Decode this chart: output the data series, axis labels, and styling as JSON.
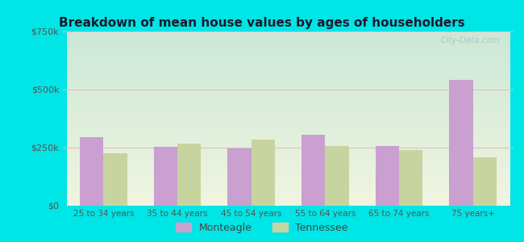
{
  "title": "Breakdown of mean house values by ages of householders",
  "categories": [
    "25 to 34 years",
    "35 to 44 years",
    "45 to 54 years",
    "55 to 64 years",
    "65 to 74 years",
    "75 years+"
  ],
  "monteagle": [
    295000,
    255000,
    248000,
    305000,
    258000,
    540000
  ],
  "tennessee": [
    225000,
    268000,
    285000,
    258000,
    240000,
    210000
  ],
  "monteagle_color": "#c9a0d0",
  "tennessee_color": "#c8d4a0",
  "ylim": [
    0,
    750000
  ],
  "yticks": [
    0,
    250000,
    500000,
    750000
  ],
  "ytick_labels": [
    "$0",
    "$250k",
    "$500k",
    "$750k"
  ],
  "background_top": "#cce8d8",
  "background_bottom": "#f0f5e0",
  "outer_color": "#00e5e5",
  "watermark": "City-Data.com",
  "legend_monteagle": "Monteagle",
  "legend_tennessee": "Tennessee",
  "bar_width": 0.32
}
